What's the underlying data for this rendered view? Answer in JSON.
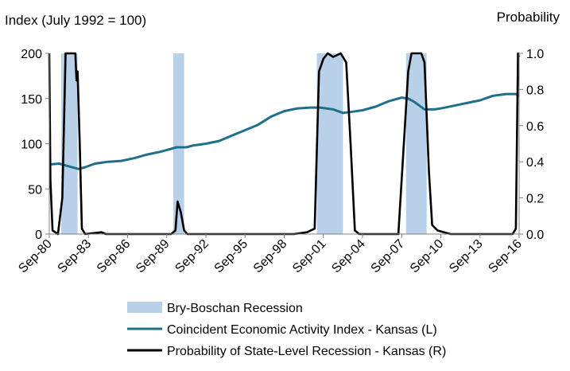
{
  "chart_data": {
    "type": "line",
    "left_axis_title": "Index (July 1992 = 100)",
    "right_axis_title": "Probability",
    "x_ticks": [
      "Sep-80",
      "Sep-83",
      "Sep-86",
      "Sep-89",
      "Sep-92",
      "Sep-95",
      "Sep-98",
      "Sep-01",
      "Sep-04",
      "Sep-07",
      "Sep-10",
      "Sep-13",
      "Sep-16"
    ],
    "x_range": [
      "1980-09",
      "2016-09"
    ],
    "ylim_left": [
      0,
      200
    ],
    "y_ticks_left": [
      "0",
      "50",
      "100",
      "150",
      "200"
    ],
    "ylim_right": [
      0,
      1
    ],
    "y_ticks_right": [
      "0.0",
      "0.2",
      "0.4",
      "0.6",
      "0.8",
      "1.0"
    ],
    "grid": false,
    "legend_position": "bottom",
    "recessions": {
      "name": "Bry-Boschan Recession",
      "color": "#b8d0e8",
      "periods": [
        [
          "1981-08",
          "1982-11"
        ],
        [
          "1990-03",
          "1991-01"
        ],
        [
          "2001-03",
          "2003-03"
        ],
        [
          "2008-01",
          "2009-08"
        ]
      ]
    },
    "series": [
      {
        "name": "Coincident Economic Activity Index - Kansas (L)",
        "axis": "left",
        "color": "#1f6f8b",
        "points": [
          [
            "1980-09",
            77
          ],
          [
            "1981-06",
            78
          ],
          [
            "1982-03",
            75
          ],
          [
            "1982-12",
            72
          ],
          [
            "1983-06",
            74
          ],
          [
            "1984-03",
            78
          ],
          [
            "1985-03",
            80
          ],
          [
            "1986-03",
            81
          ],
          [
            "1987-03",
            84
          ],
          [
            "1988-03",
            88
          ],
          [
            "1989-03",
            91
          ],
          [
            "1989-09",
            93
          ],
          [
            "1990-06",
            96
          ],
          [
            "1991-03",
            96
          ],
          [
            "1991-09",
            98
          ],
          [
            "1992-09",
            100
          ],
          [
            "1993-09",
            103
          ],
          [
            "1994-09",
            109
          ],
          [
            "1995-09",
            115
          ],
          [
            "1996-09",
            121
          ],
          [
            "1997-09",
            130
          ],
          [
            "1998-09",
            136
          ],
          [
            "1999-09",
            139
          ],
          [
            "2000-09",
            140
          ],
          [
            "2001-06",
            140
          ],
          [
            "2002-06",
            138
          ],
          [
            "2003-03",
            134
          ],
          [
            "2003-09",
            135
          ],
          [
            "2004-09",
            137
          ],
          [
            "2005-09",
            141
          ],
          [
            "2006-09",
            147
          ],
          [
            "2007-09",
            151
          ],
          [
            "2008-03",
            150
          ],
          [
            "2008-09",
            146
          ],
          [
            "2009-06",
            138
          ],
          [
            "2010-03",
            138
          ],
          [
            "2010-09",
            139
          ],
          [
            "2011-09",
            142
          ],
          [
            "2012-09",
            145
          ],
          [
            "2013-09",
            148
          ],
          [
            "2014-09",
            153
          ],
          [
            "2015-09",
            155
          ],
          [
            "2016-06",
            155
          ],
          [
            "2016-09",
            153
          ]
        ]
      },
      {
        "name": "Probability of State-Level Recession - Kansas (R)",
        "axis": "right",
        "color": "#000000",
        "points": [
          [
            "1980-09",
            1.0
          ],
          [
            "1980-10",
            0.3
          ],
          [
            "1980-12",
            0.02
          ],
          [
            "1981-05",
            0.0
          ],
          [
            "1981-09",
            0.2
          ],
          [
            "1981-12",
            1.0
          ],
          [
            "1982-06",
            1.0
          ],
          [
            "1982-09",
            1.0
          ],
          [
            "1982-10",
            0.85
          ],
          [
            "1982-11",
            0.9
          ],
          [
            "1983-01",
            0.5
          ],
          [
            "1983-03",
            0.03
          ],
          [
            "1983-06",
            0.0
          ],
          [
            "1984-09",
            0.01
          ],
          [
            "1985-01",
            0.0
          ],
          [
            "1990-01",
            0.0
          ],
          [
            "1990-05",
            0.02
          ],
          [
            "1990-07",
            0.18
          ],
          [
            "1990-10",
            0.12
          ],
          [
            "1991-01",
            0.02
          ],
          [
            "1991-04",
            0.0
          ],
          [
            "1999-06",
            0.0
          ],
          [
            "2000-06",
            0.01
          ],
          [
            "2001-01",
            0.03
          ],
          [
            "2001-05",
            0.9
          ],
          [
            "2001-09",
            0.97
          ],
          [
            "2002-01",
            1.0
          ],
          [
            "2002-06",
            0.98
          ],
          [
            "2003-01",
            1.0
          ],
          [
            "2003-06",
            0.95
          ],
          [
            "2003-10",
            0.5
          ],
          [
            "2004-02",
            0.02
          ],
          [
            "2004-06",
            0.0
          ],
          [
            "2007-06",
            0.0
          ],
          [
            "2008-03",
            0.9
          ],
          [
            "2008-06",
            1.0
          ],
          [
            "2009-03",
            1.0
          ],
          [
            "2009-06",
            0.95
          ],
          [
            "2009-10",
            0.35
          ],
          [
            "2010-01",
            0.05
          ],
          [
            "2010-06",
            0.02
          ],
          [
            "2011-06",
            0.0
          ],
          [
            "2016-03",
            0.0
          ],
          [
            "2016-06",
            0.03
          ],
          [
            "2016-08",
            1.0
          ],
          [
            "2016-09",
            0.98
          ]
        ]
      }
    ]
  }
}
